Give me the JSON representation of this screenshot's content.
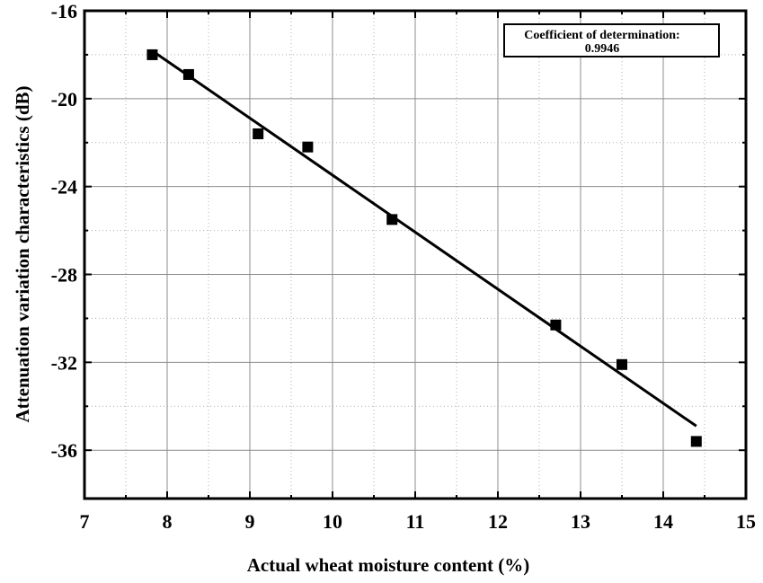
{
  "chart_data": {
    "type": "scatter",
    "xlabel": "Actual wheat moisture content (%)",
    "ylabel": "Attenuation variation characteristics (dB)",
    "xlim": [
      7,
      15
    ],
    "ylim": [
      -38.2,
      -16
    ],
    "x_ticks": [
      7,
      8,
      9,
      10,
      11,
      12,
      13,
      14,
      15
    ],
    "y_ticks": [
      -16,
      -20,
      -24,
      -28,
      -32,
      -36
    ],
    "grid": true,
    "series": [
      {
        "marker": "square",
        "color": "#000000",
        "points": [
          {
            "x": 7.82,
            "y": -18.0
          },
          {
            "x": 8.26,
            "y": -18.9
          },
          {
            "x": 9.1,
            "y": -21.6
          },
          {
            "x": 9.7,
            "y": -22.2
          },
          {
            "x": 10.72,
            "y": -25.5
          },
          {
            "x": 12.7,
            "y": -30.3
          },
          {
            "x": 13.5,
            "y": -32.1
          },
          {
            "x": 14.4,
            "y": -35.6
          }
        ]
      }
    ],
    "fit_line": {
      "x": [
        7.85,
        14.4
      ],
      "y": [
        -17.9,
        -34.9
      ],
      "color": "#000000"
    },
    "annotation": {
      "line1": "Coefficient of determination:",
      "line2": "0.9946",
      "placement": "top-right"
    }
  }
}
